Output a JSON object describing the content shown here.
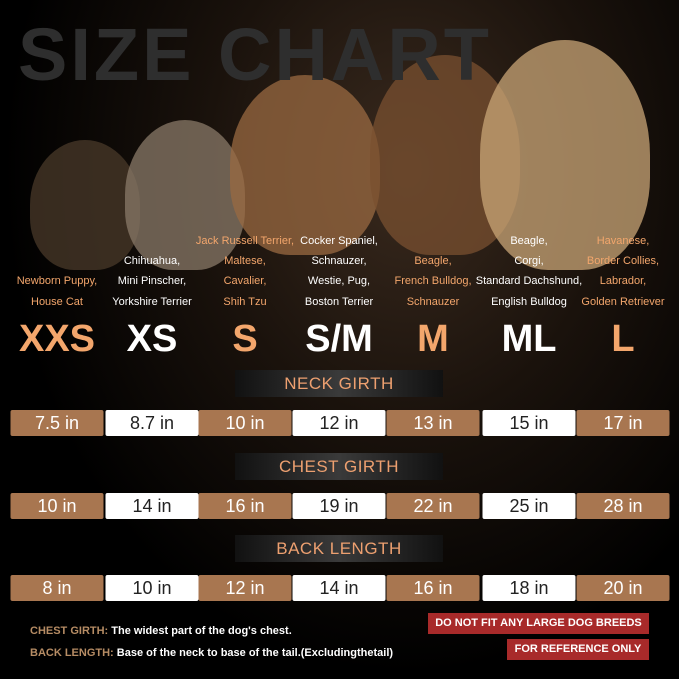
{
  "title": "SIZE CHART",
  "colors": {
    "accent": "#f3a66c",
    "brown_box": "#a87650",
    "white_box": "#ffffff",
    "warning": "#a82a2a"
  },
  "sizes": [
    {
      "label": "XXS",
      "breeds": [
        "Newborn Puppy,",
        "House Cat"
      ],
      "neck": "7.5 in",
      "chest": "10 in",
      "back": "8 in"
    },
    {
      "label": "XS",
      "breeds": [
        "Chihuahua,",
        "Mini Pinscher,",
        "Yorkshire Terrier"
      ],
      "neck": "8.7 in",
      "chest": "14 in",
      "back": "10 in"
    },
    {
      "label": "S",
      "breeds": [
        "Jack Russell Terrier,",
        "Maltese,",
        "Cavalier,",
        "Shih Tzu"
      ],
      "neck": "10 in",
      "chest": "16 in",
      "back": "12 in"
    },
    {
      "label": "S/M",
      "breeds": [
        "Cocker Spaniel,",
        "Schnauzer,",
        "Westie, Pug,",
        "Boston Terrier"
      ],
      "neck": "12 in",
      "chest": "19 in",
      "back": "14 in"
    },
    {
      "label": "M",
      "breeds": [
        "Beagle,",
        "French Bulldog,",
        "Schnauzer"
      ],
      "neck": "13 in",
      "chest": "22 in",
      "back": "16 in"
    },
    {
      "label": "ML",
      "breeds": [
        "Beagle,",
        "Corgi,",
        "Standard Dachshund,",
        "English Bulldog"
      ],
      "neck": "15 in",
      "chest": "25 in",
      "back": "18 in"
    },
    {
      "label": "L",
      "breeds": [
        "Havanese,",
        "Border Collies,",
        "Labrador,",
        "Golden Retriever"
      ],
      "neck": "17 in",
      "chest": "28 in",
      "back": "20 in"
    }
  ],
  "headers": {
    "neck": "NECK GIRTH",
    "chest": "CHEST GIRTH",
    "back": "BACK LENGTH"
  },
  "notes": {
    "chest_label": "CHEST GIRTH:",
    "chest_text": "The widest part of the dog's chest.",
    "back_label": "BACK LENGTH:",
    "back_text": "Base of the neck to base of the tail.(Excludingthetail)"
  },
  "warnings": [
    "DO NOT FIT ANY LARGE DOG BREEDS",
    "FOR REFERENCE ONLY"
  ]
}
